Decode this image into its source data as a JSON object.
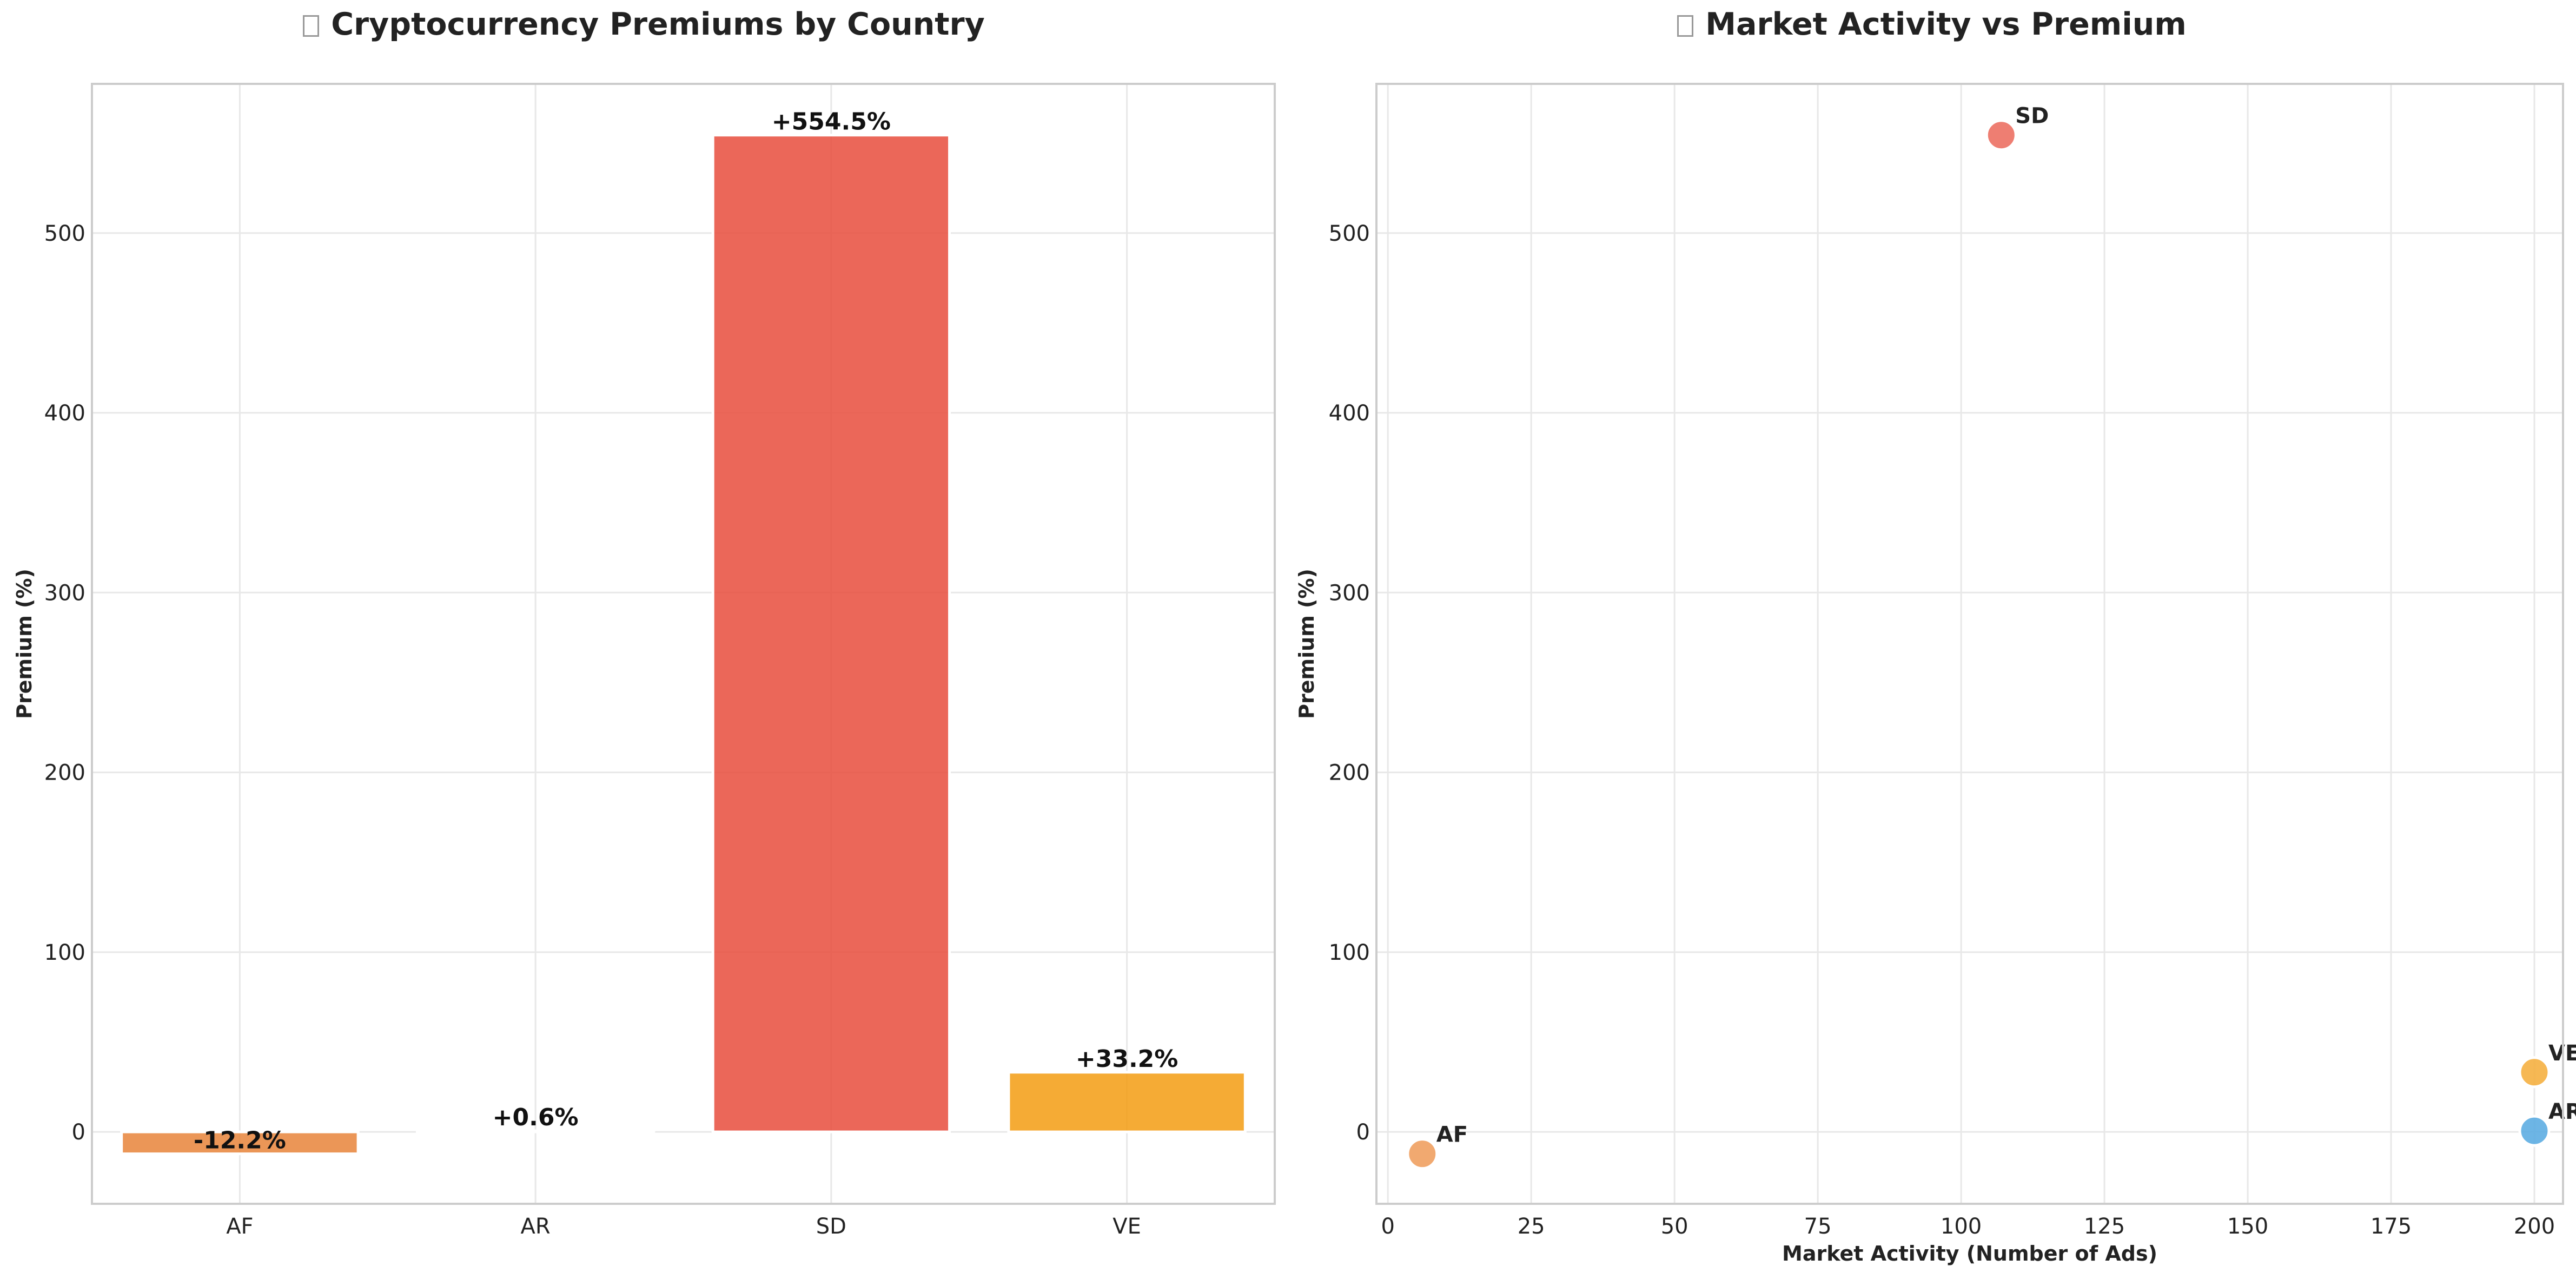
{
  "chart_data": [
    {
      "type": "bar",
      "title": "Cryptocurrency Premiums by Country",
      "title_icon": "chart-emoji-icon",
      "categories": [
        "AF",
        "AR",
        "SD",
        "VE"
      ],
      "values": [
        -12.2,
        0.6,
        554.5,
        33.2
      ],
      "data_labels": [
        "-12.2%",
        "+0.6%",
        "+554.5%",
        "+33.2%"
      ],
      "colors": [
        "#E8843A",
        "#3498DB",
        "#E74C3C",
        "#F39C12"
      ],
      "xlabel": "",
      "ylabel": "Premium (%)",
      "ylim": [
        -40,
        583
      ],
      "yticks": [
        0,
        100,
        200,
        300,
        400,
        500
      ],
      "grid": true
    },
    {
      "type": "scatter",
      "title": "Market Activity vs Premium",
      "title_icon": "chart-emoji-icon",
      "points": [
        {
          "label": "AF",
          "x": 6,
          "y": -12.2,
          "color": "#F0A060"
        },
        {
          "label": "AR",
          "x": 200,
          "y": 0.6,
          "color": "#5DADE2"
        },
        {
          "label": "SD",
          "x": 107,
          "y": 554.5,
          "color": "#EC7063"
        },
        {
          "label": "VE",
          "x": 200,
          "y": 33.2,
          "color": "#F5B041"
        }
      ],
      "xlabel": "Market Activity (Number of Ads)",
      "ylabel": "Premium (%)",
      "xlim": [
        -2,
        205
      ],
      "ylim": [
        -40,
        583
      ],
      "xticks": [
        0,
        25,
        50,
        75,
        100,
        125,
        150,
        175,
        200
      ],
      "yticks": [
        0,
        100,
        200,
        300,
        400,
        500
      ],
      "grid": true
    }
  ]
}
